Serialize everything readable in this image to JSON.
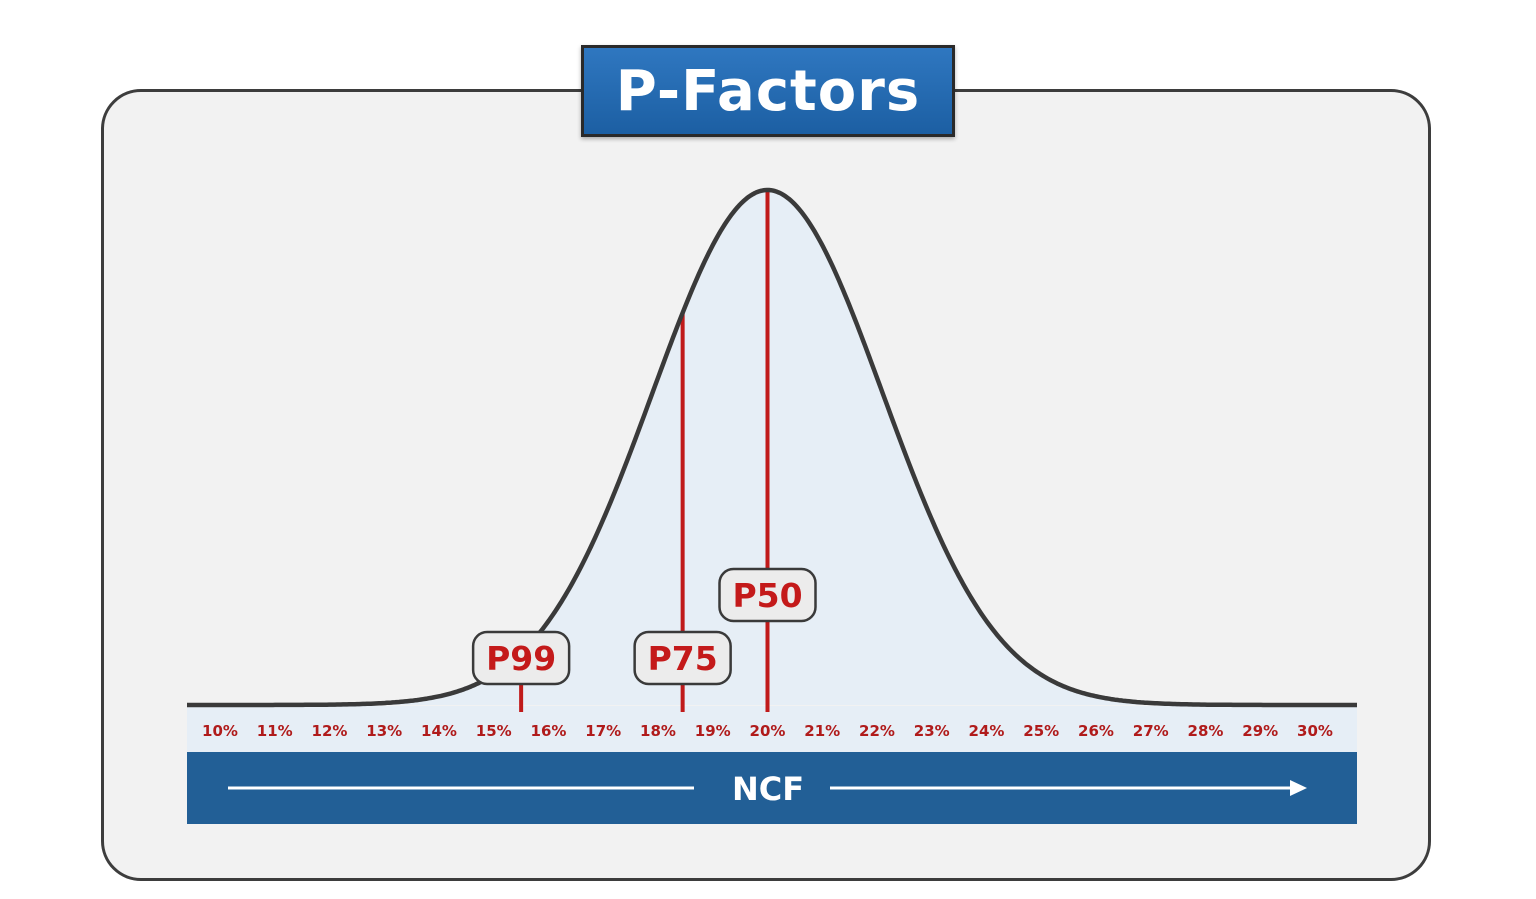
{
  "title": "P-Factors",
  "axis_label": "NCF",
  "tick_labels": [
    "10%",
    "11%",
    "12%",
    "13%",
    "14%",
    "15%",
    "16%",
    "17%",
    "18%",
    "19%",
    "20%",
    "21%",
    "22%",
    "23%",
    "24%",
    "25%",
    "26%",
    "27%",
    "28%",
    "29%",
    "30%"
  ],
  "markers": [
    {
      "label": "P99",
      "value": 15.5
    },
    {
      "label": "P75",
      "value": 18.45
    },
    {
      "label": "P50",
      "value": 20
    }
  ],
  "colors": {
    "title_bg": "#1f64aa",
    "axis_band": "#225f96",
    "marker_line": "#c01a1a",
    "curve": "#3a3a3a",
    "curve_fill": "#e6eef6"
  }
}
